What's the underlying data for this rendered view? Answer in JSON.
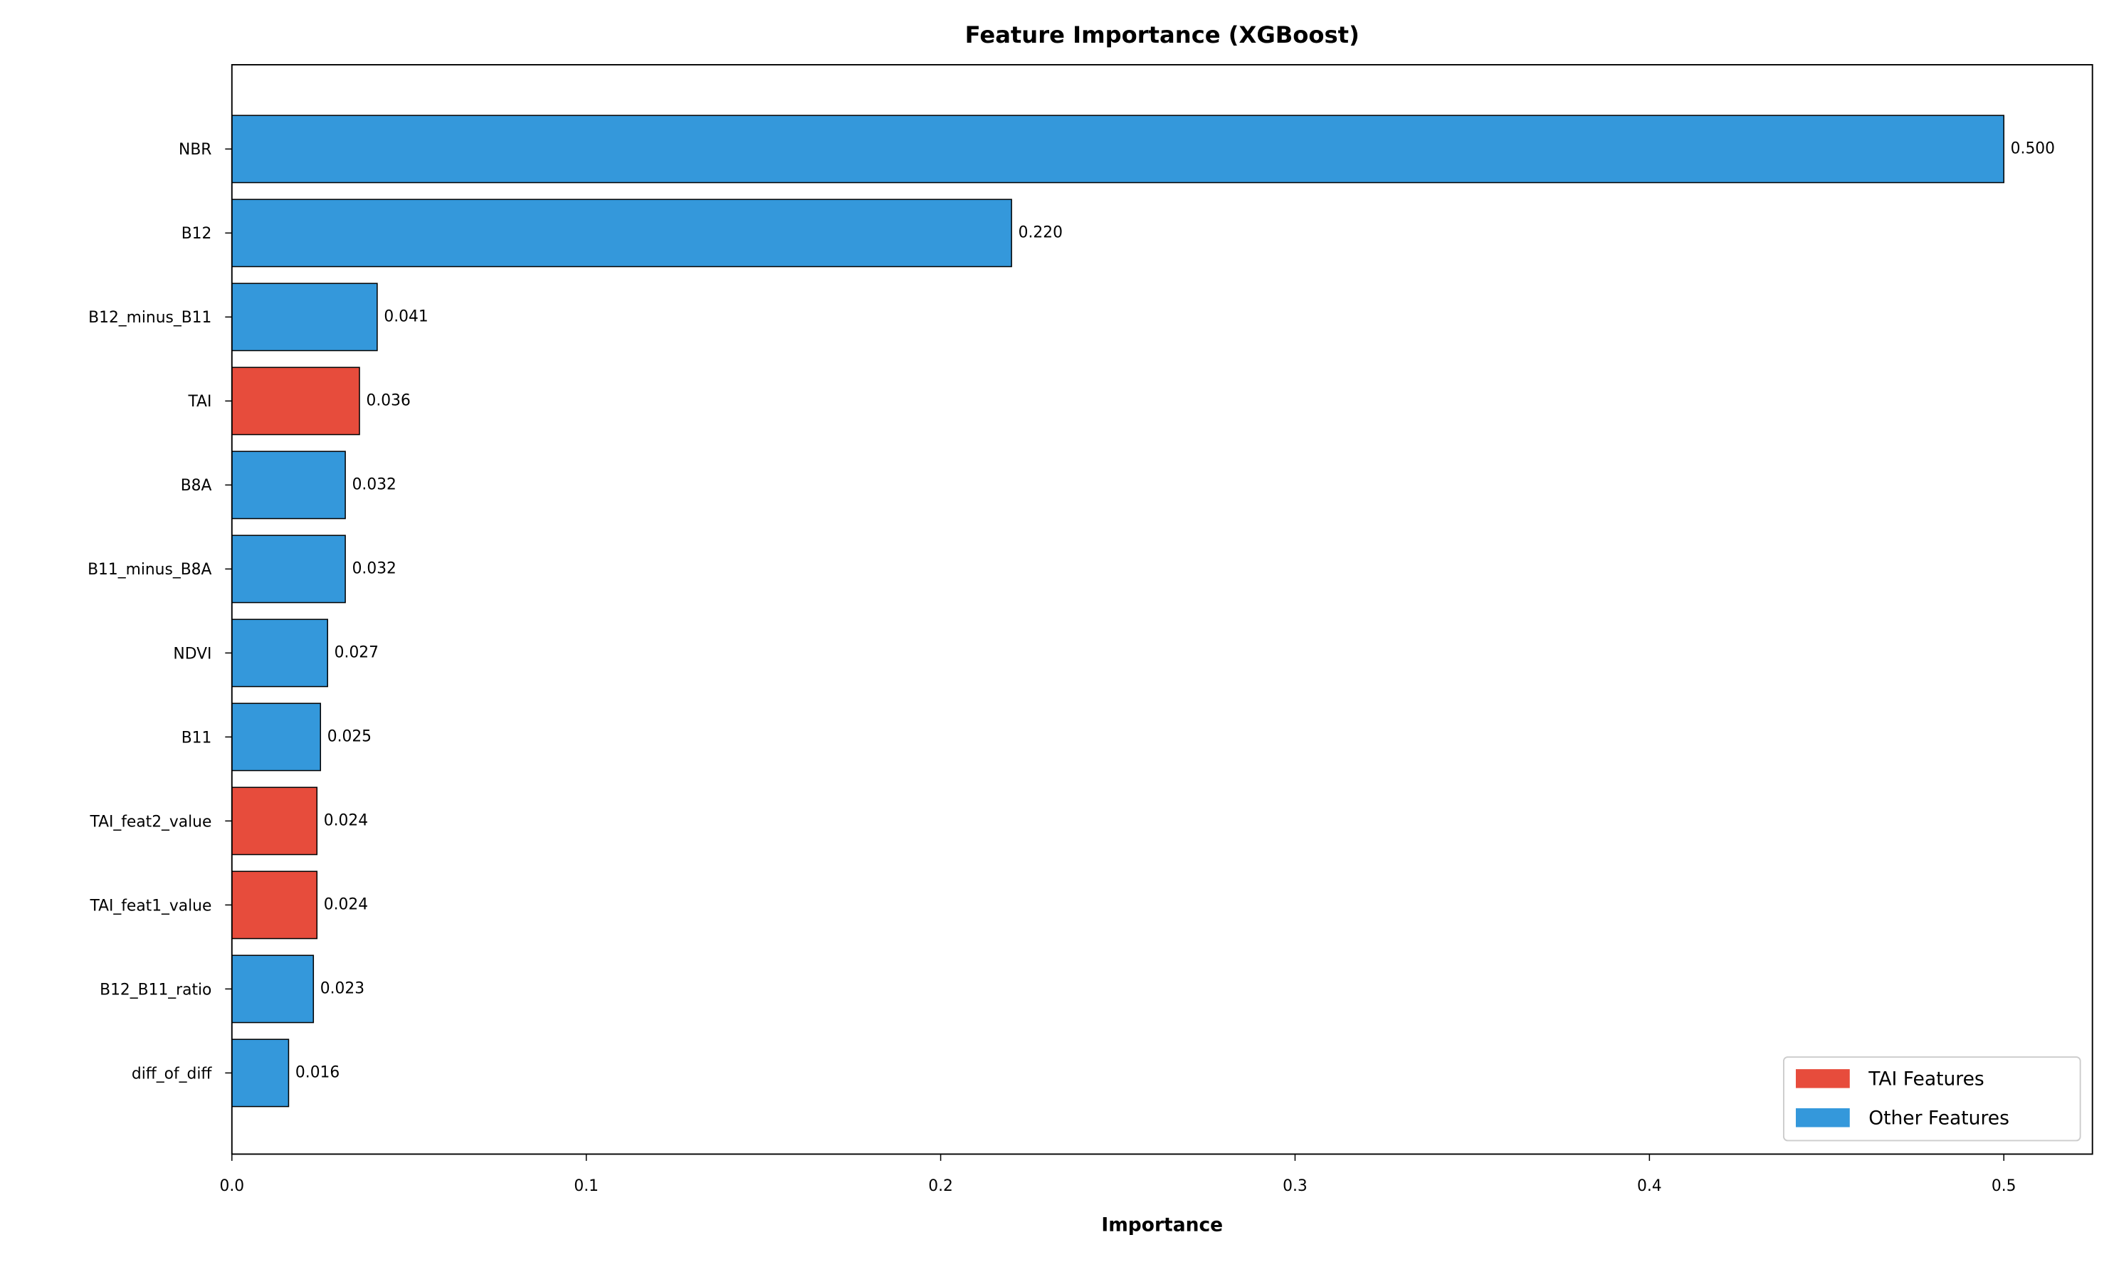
{
  "chart_data": {
    "type": "barh",
    "title": "Feature Importance (XGBoost)",
    "x_label": "Importance",
    "categories": [
      "NBR",
      "B12",
      "B12_minus_B11",
      "TAI",
      "B8A",
      "B11_minus_B8A",
      "NDVI",
      "B11",
      "TAI_feat2_value",
      "TAI_feat1_value",
      "B12_B11_ratio",
      "diff_of_diff"
    ],
    "values": [
      0.5,
      0.22,
      0.041,
      0.036,
      0.032,
      0.032,
      0.027,
      0.025,
      0.024,
      0.024,
      0.023,
      0.016
    ],
    "value_labels": [
      "0.500",
      "0.220",
      "0.041",
      "0.036",
      "0.032",
      "0.032",
      "0.027",
      "0.025",
      "0.024",
      "0.024",
      "0.023",
      "0.016"
    ],
    "colors": [
      "#3498db",
      "#3498db",
      "#3498db",
      "#e74c3c",
      "#3498db",
      "#3498db",
      "#3498db",
      "#3498db",
      "#e74c3c",
      "#e74c3c",
      "#3498db",
      "#3498db"
    ],
    "xlim": [
      0,
      0.525
    ],
    "xticks": [
      {
        "value": 0,
        "label": "0.0"
      },
      0.1,
      0.2,
      0.3,
      0.4,
      0.5
    ],
    "legend": {
      "position": "lower right",
      "entries": [
        {
          "name": "TAI Features",
          "color": "#e74c3c"
        },
        {
          "name": "Other Features",
          "color": "#3498db"
        }
      ]
    }
  }
}
